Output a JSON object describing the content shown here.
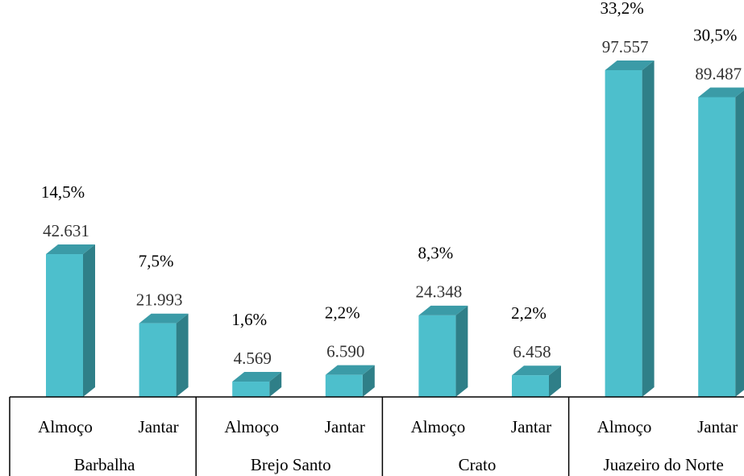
{
  "chart_data": {
    "type": "bar3d",
    "groups": [
      "Barbalha",
      "Brejo Santo",
      "Crato",
      "Juazeiro do Norte"
    ],
    "categories": [
      "Almoço",
      "Jantar",
      "Almoço",
      "Jantar",
      "Almoço",
      "Jantar",
      "Almoço",
      "Jantar"
    ],
    "values": [
      42631,
      21993,
      4569,
      6590,
      24348,
      6458,
      97557,
      89487
    ],
    "value_labels": [
      "42.631",
      "21.993",
      "4.569",
      "6.590",
      "24.348",
      "6.458",
      "97.557",
      "89.487"
    ],
    "shares": [
      14.5,
      7.5,
      1.6,
      2.2,
      8.3,
      2.2,
      33.2,
      30.5
    ],
    "share_labels": [
      "14,5%",
      "7,5%",
      "1,6%",
      "2,2%",
      "8,3%",
      "2,2%",
      "33,2%",
      "30,5%"
    ],
    "color": "#4dbfcc",
    "side_color": "#2f7f88",
    "top_color": "#3b9ba7"
  }
}
